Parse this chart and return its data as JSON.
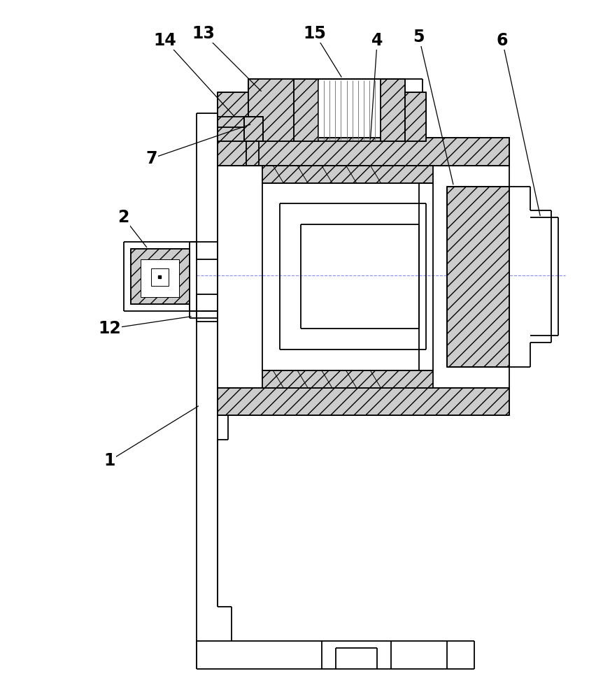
{
  "bg_color": "#ffffff",
  "line_color": "#000000",
  "lw_main": 1.3,
  "lw_thin": 0.7,
  "lw_med": 1.0,
  "figure_width": 8.53,
  "figure_height": 10.0,
  "dpi": 100,
  "label_fontsize": 17,
  "hatch_fc": "#cccccc",
  "hatch_density": "//"
}
